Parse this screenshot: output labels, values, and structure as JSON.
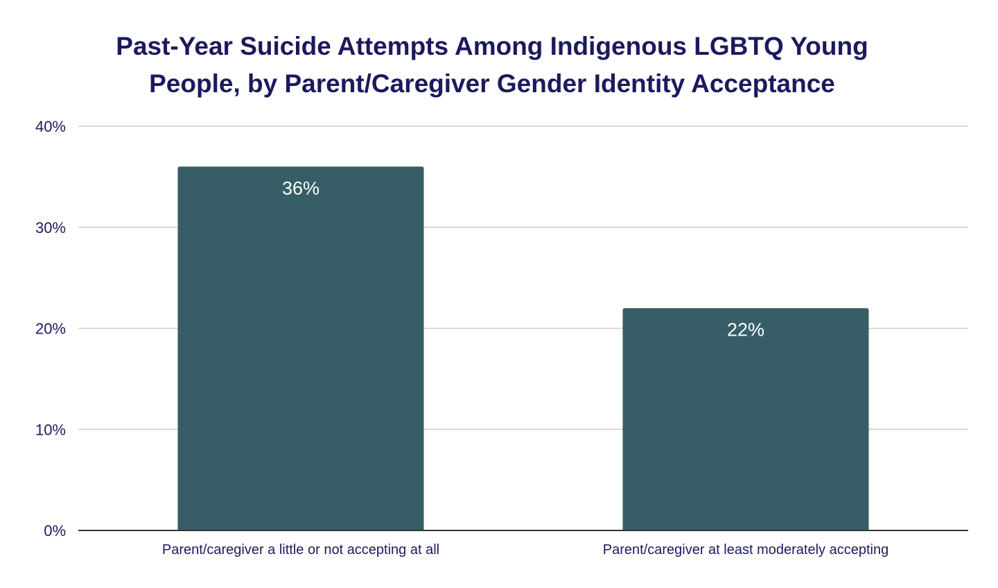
{
  "chart_data": {
    "type": "bar",
    "title_lines": [
      "Past-Year Suicide Attempts Among Indigenous LGBTQ Young",
      "People, by Parent/Caregiver Gender Identity Acceptance"
    ],
    "categories": [
      "Parent/caregiver a little or not accepting at all",
      "Parent/caregiver at least moderately accepting"
    ],
    "values": [
      36,
      22
    ],
    "data_labels": [
      "36%",
      "22%"
    ],
    "xlabel": "",
    "ylabel": "",
    "ylim": [
      0,
      40
    ],
    "y_ticks": [
      0,
      10,
      20,
      30,
      40
    ],
    "y_tick_labels": [
      "0%",
      "10%",
      "20%",
      "30%",
      "40%"
    ],
    "grid": true,
    "legend": "none",
    "colors": {
      "bar": "#375e66",
      "title": "#1b1a5e",
      "axis_text": "#1b1a5e",
      "gridline": "#cccccc",
      "baseline": "#333333",
      "data_label": "#ffffff"
    }
  }
}
